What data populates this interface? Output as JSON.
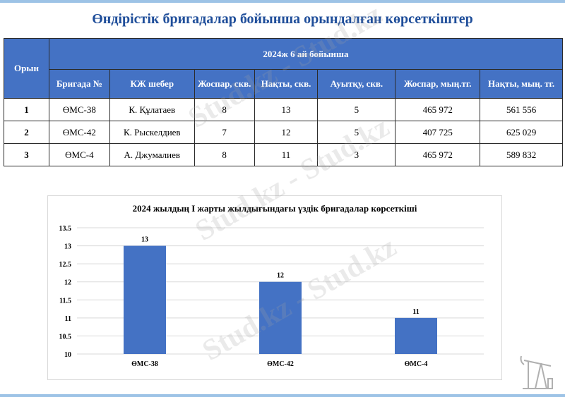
{
  "title": "Өндірістік бригадалар бойынша орындалған көрсеткіштер",
  "table": {
    "rank_header": "Орын",
    "period_header": "2024ж 6 ай бойынша",
    "columns": [
      "Бригада №",
      "КЖ шебер",
      "Жоспар, скв.",
      "Нақты, скв.",
      "Ауытқу, скв.",
      "Жоспар, мың.тг.",
      "Нақты, мың. тг."
    ],
    "rows": [
      {
        "rank": "1",
        "brigade": "ӨМС-38",
        "master": "К. Құлатаев",
        "plan_wells": "8",
        "actual_wells": "13",
        "deviation": "5",
        "plan_money": "465 972",
        "actual_money": "561 556"
      },
      {
        "rank": "2",
        "brigade": "ӨМС-42",
        "master": "К. Рыскелдиев",
        "plan_wells": "7",
        "actual_wells": "12",
        "deviation": "5",
        "plan_money": "407 725",
        "actual_money": "625 029"
      },
      {
        "rank": "3",
        "brigade": "ӨМС-4",
        "master": "А. Джумалиев",
        "plan_wells": "8",
        "actual_wells": "11",
        "deviation": "3",
        "plan_money": "465 972",
        "actual_money": "589 832"
      }
    ]
  },
  "chart_data": {
    "type": "bar",
    "title": "2024 жылдың І жарты жылдығындағы үздік бригадалар көрсеткіші",
    "categories": [
      "ӨМС-38",
      "ӨМС-42",
      "ӨМС-4"
    ],
    "values": [
      13,
      12,
      11
    ],
    "ylim": [
      10,
      13.5
    ],
    "yticks": [
      "13.5",
      "13",
      "12.5",
      "12",
      "11.5",
      "11",
      "10.5",
      "10"
    ],
    "bar_color": "#4472c4",
    "grid": true
  },
  "watermark": "Stud.kz - Stud.kz"
}
